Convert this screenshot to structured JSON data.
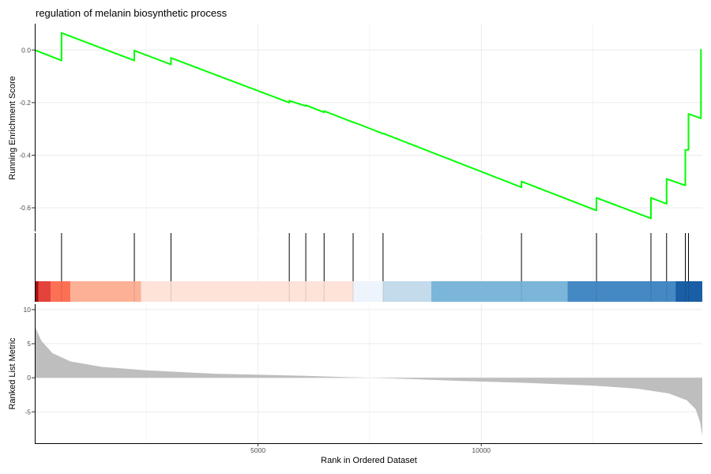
{
  "chart_data": {
    "type": "line",
    "title": "regulation of melanin biosynthetic process",
    "xlabel": "Rank in Ordered Dataset",
    "xlim": [
      0,
      14950
    ],
    "x_ticks": [
      5000,
      10000
    ],
    "running_score": {
      "ylabel": "Running Enrichment Score",
      "ylim": [
        -0.69,
        0.1
      ],
      "y_ticks": [
        0.0,
        -0.2,
        -0.4,
        -0.6
      ],
      "color": "#00ff00",
      "points": [
        [
          0,
          0.0
        ],
        [
          600,
          -0.04
        ],
        [
          600,
          0.065
        ],
        [
          2230,
          -0.04
        ],
        [
          2230,
          -0.002
        ],
        [
          3050,
          -0.055
        ],
        [
          3050,
          -0.03
        ],
        [
          5700,
          -0.2
        ],
        [
          5700,
          -0.193
        ],
        [
          6070,
          -0.213
        ],
        [
          6070,
          -0.21
        ],
        [
          6480,
          -0.237
        ],
        [
          6480,
          -0.232
        ],
        [
          7130,
          -0.275
        ],
        [
          7130,
          -0.274
        ],
        [
          7800,
          -0.318
        ],
        [
          7800,
          -0.317
        ],
        [
          10900,
          -0.522
        ],
        [
          10900,
          -0.5
        ],
        [
          12580,
          -0.61
        ],
        [
          12580,
          -0.562
        ],
        [
          13800,
          -0.64
        ],
        [
          13800,
          -0.562
        ],
        [
          14150,
          -0.585
        ],
        [
          14150,
          -0.49
        ],
        [
          14570,
          -0.515
        ],
        [
          14570,
          -0.38
        ],
        [
          14640,
          -0.38
        ],
        [
          14640,
          -0.243
        ],
        [
          14920,
          -0.26
        ],
        [
          14920,
          0.003
        ]
      ]
    },
    "hits": [
      600,
      2230,
      3050,
      5700,
      6070,
      6480,
      7130,
      7800,
      10900,
      12580,
      13800,
      14150,
      14570,
      14640
    ],
    "rank_bands": [
      {
        "start": 0,
        "end": 80,
        "color": "#a50f15"
      },
      {
        "start": 80,
        "end": 360,
        "color": "#e3433a"
      },
      {
        "start": 360,
        "end": 800,
        "color": "#fc7154"
      },
      {
        "start": 800,
        "end": 2380,
        "color": "#fcb197"
      },
      {
        "start": 2380,
        "end": 7130,
        "color": "#fde3d8"
      },
      {
        "start": 7130,
        "end": 7800,
        "color": "#eef4fb"
      },
      {
        "start": 7800,
        "end": 8880,
        "color": "#c3dbea"
      },
      {
        "start": 8880,
        "end": 11930,
        "color": "#7bb5d9"
      },
      {
        "start": 11930,
        "end": 14350,
        "color": "#4589c4"
      },
      {
        "start": 14350,
        "end": 14950,
        "color": "#1a5ea5"
      }
    ],
    "ranked_metric": {
      "ylabel": "Ranked List Metric",
      "ylim": [
        -9.6,
        10.8
      ],
      "y_ticks": [
        10,
        5,
        0,
        -5
      ],
      "fill_color": "#bebebe",
      "curve": [
        [
          0,
          7.6
        ],
        [
          150,
          5.4
        ],
        [
          400,
          3.6
        ],
        [
          800,
          2.4
        ],
        [
          1500,
          1.6
        ],
        [
          2500,
          1.1
        ],
        [
          4000,
          0.6
        ],
        [
          6000,
          0.3
        ],
        [
          7200,
          0.05
        ],
        [
          7500,
          0.0
        ],
        [
          8000,
          -0.1
        ],
        [
          9500,
          -0.45
        ],
        [
          11000,
          -0.75
        ],
        [
          12500,
          -1.15
        ],
        [
          13500,
          -1.6
        ],
        [
          14200,
          -2.3
        ],
        [
          14600,
          -3.3
        ],
        [
          14800,
          -4.6
        ],
        [
          14900,
          -6.5
        ],
        [
          14950,
          -8.5
        ]
      ]
    }
  }
}
